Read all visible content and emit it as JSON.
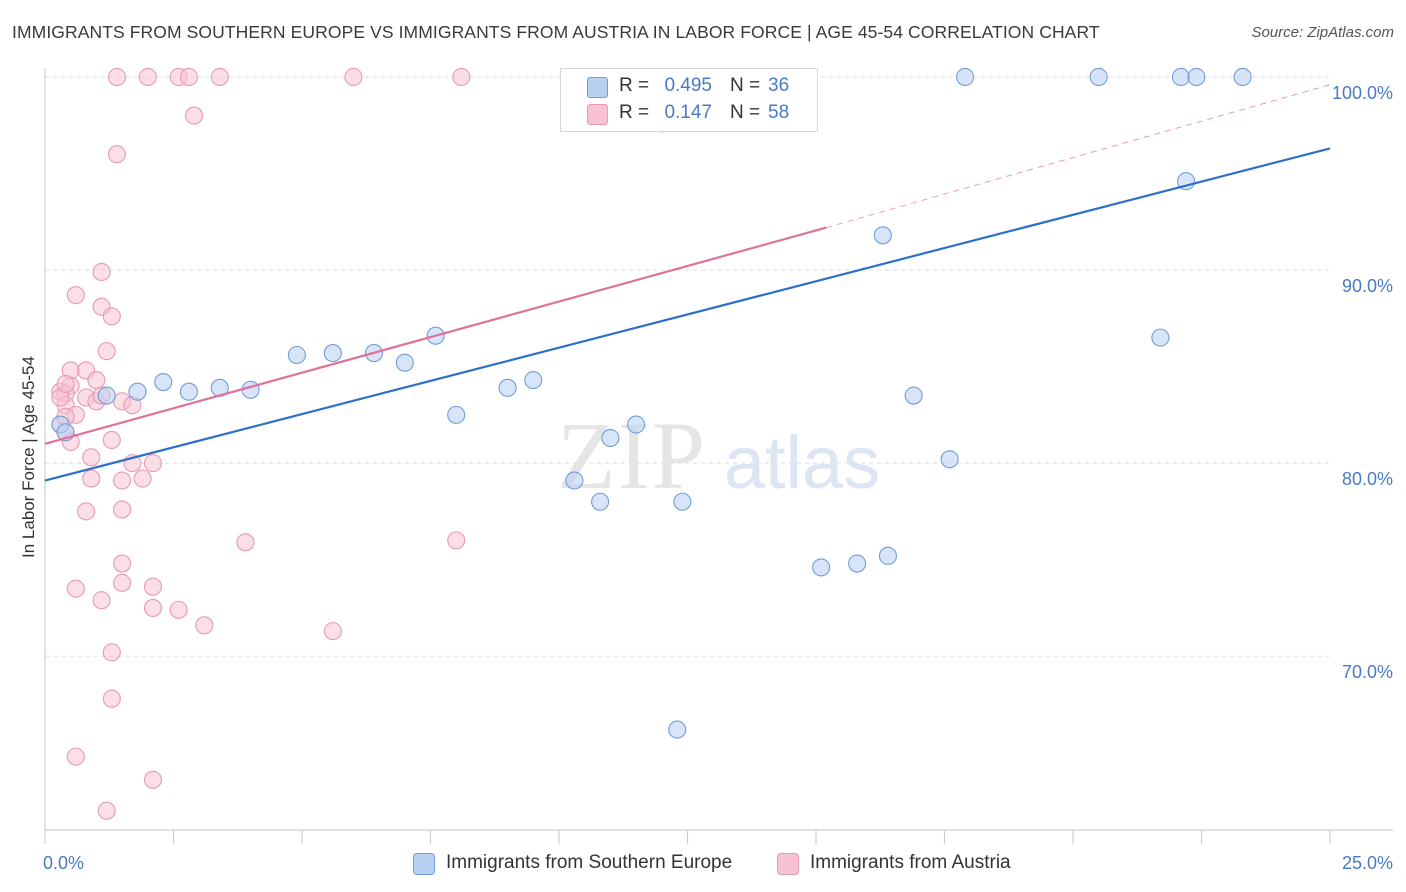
{
  "header": {
    "title": "IMMIGRANTS FROM SOUTHERN EUROPE VS IMMIGRANTS FROM AUSTRIA IN LABOR FORCE | AGE 45-54 CORRELATION CHART",
    "source": "Source: ZipAtlas.com"
  },
  "legend": {
    "r_label": "R =",
    "n_label": "N =",
    "series1": {
      "r": "0.495",
      "n": "36"
    },
    "series2": {
      "r": "0.147",
      "n": "58"
    }
  },
  "watermark": {
    "zip": "ZIP",
    "atlas": "atlas"
  },
  "colors": {
    "blue_fill": "#b8d0f2",
    "blue_stroke": "#6f9ed8",
    "blue_line": "#2e6fcb",
    "pink_fill": "#f7c3d2",
    "pink_stroke": "#e79ab3",
    "pink_line": "#e0719a",
    "grid": "#dedede",
    "tick_label": "#4a7ac6"
  },
  "chart_data": {
    "type": "scatter",
    "title": "IMMIGRANTS FROM SOUTHERN EUROPE VS IMMIGRANTS FROM AUSTRIA IN LABOR FORCE | AGE 45-54 CORRELATION CHART",
    "xlabel": "",
    "ylabel": "In Labor Force | Age 45-54",
    "xlim": [
      0,
      25
    ],
    "ylim": [
      61.0,
      101.5
    ],
    "x_tick_labels": [
      "0.0%",
      "25.0%"
    ],
    "y_ticks": [
      70,
      80,
      90,
      100
    ],
    "y_tick_labels": [
      "70.0%",
      "80.0%",
      "90.0%",
      "100.0%"
    ],
    "grid": true,
    "legend_position": "top-center",
    "series": [
      {
        "name": "Immigrants from Southern Europe",
        "r": 0.495,
        "n": 36,
        "color": "#b8d0f2",
        "trend": {
          "x": [
            0,
            25
          ],
          "y": [
            79.1,
            96.3
          ]
        },
        "points": [
          [
            0.3,
            82.0
          ],
          [
            0.4,
            81.6
          ],
          [
            1.2,
            83.5
          ],
          [
            1.8,
            83.7
          ],
          [
            2.3,
            84.2
          ],
          [
            2.8,
            83.7
          ],
          [
            3.4,
            83.9
          ],
          [
            4.0,
            83.8
          ],
          [
            4.9,
            85.6
          ],
          [
            5.6,
            85.7
          ],
          [
            6.4,
            85.7
          ],
          [
            7.0,
            85.2
          ],
          [
            7.6,
            86.6
          ],
          [
            8.0,
            82.5
          ],
          [
            9.0,
            83.9
          ],
          [
            9.5,
            84.3
          ],
          [
            10.3,
            79.1
          ],
          [
            10.8,
            78.0
          ],
          [
            11.0,
            81.3
          ],
          [
            11.5,
            82.0
          ],
          [
            12.4,
            78.0
          ],
          [
            15.1,
            74.6
          ],
          [
            15.8,
            74.8
          ],
          [
            16.4,
            75.2
          ],
          [
            16.9,
            83.5
          ],
          [
            17.6,
            80.2
          ],
          [
            12.3,
            66.2
          ],
          [
            12.0,
            97.6
          ],
          [
            16.3,
            91.8
          ],
          [
            17.9,
            100.0
          ],
          [
            20.5,
            100.0
          ],
          [
            22.1,
            100.0
          ],
          [
            22.4,
            100.0
          ],
          [
            23.3,
            100.0
          ],
          [
            22.2,
            94.6
          ],
          [
            21.7,
            86.5
          ]
        ]
      },
      {
        "name": "Immigrants from Austria",
        "r": 0.147,
        "n": 58,
        "color": "#f7c3d2",
        "trend": {
          "x": [
            0,
            15.2,
            25
          ],
          "y": [
            81.0,
            92.2,
            99.6
          ],
          "solid_until_x": 15.2
        },
        "points": [
          [
            1.4,
            100.0
          ],
          [
            2.0,
            100.0
          ],
          [
            2.6,
            100.0
          ],
          [
            2.8,
            100.0
          ],
          [
            3.4,
            100.0
          ],
          [
            6.0,
            100.0
          ],
          [
            8.1,
            100.0
          ],
          [
            2.9,
            98.0
          ],
          [
            1.4,
            96.0
          ],
          [
            1.1,
            89.9
          ],
          [
            0.6,
            88.7
          ],
          [
            1.1,
            88.1
          ],
          [
            1.3,
            87.6
          ],
          [
            1.2,
            85.8
          ],
          [
            0.5,
            84.8
          ],
          [
            0.8,
            84.8
          ],
          [
            1.0,
            84.3
          ],
          [
            0.5,
            84.0
          ],
          [
            0.3,
            83.7
          ],
          [
            0.4,
            83.6
          ],
          [
            0.8,
            83.4
          ],
          [
            1.0,
            83.2
          ],
          [
            1.5,
            83.2
          ],
          [
            1.7,
            83.0
          ],
          [
            0.4,
            83.0
          ],
          [
            0.6,
            82.5
          ],
          [
            0.3,
            82.0
          ],
          [
            0.4,
            81.6
          ],
          [
            1.3,
            81.2
          ],
          [
            0.5,
            81.1
          ],
          [
            0.9,
            80.3
          ],
          [
            1.7,
            80.0
          ],
          [
            2.1,
            80.0
          ],
          [
            1.9,
            79.2
          ],
          [
            0.9,
            79.2
          ],
          [
            1.5,
            79.1
          ],
          [
            0.8,
            77.5
          ],
          [
            1.5,
            77.6
          ],
          [
            1.5,
            74.8
          ],
          [
            1.5,
            73.8
          ],
          [
            2.1,
            73.6
          ],
          [
            0.6,
            73.5
          ],
          [
            1.1,
            72.9
          ],
          [
            2.1,
            72.5
          ],
          [
            2.6,
            72.4
          ],
          [
            3.1,
            71.6
          ],
          [
            5.6,
            71.3
          ],
          [
            1.3,
            70.2
          ],
          [
            1.3,
            67.8
          ],
          [
            0.6,
            64.8
          ],
          [
            2.1,
            63.6
          ],
          [
            1.2,
            62.0
          ],
          [
            3.9,
            75.9
          ],
          [
            8.0,
            76.0
          ],
          [
            0.3,
            83.4
          ],
          [
            0.4,
            84.1
          ],
          [
            0.4,
            82.4
          ],
          [
            1.1,
            83.5
          ]
        ]
      }
    ]
  }
}
